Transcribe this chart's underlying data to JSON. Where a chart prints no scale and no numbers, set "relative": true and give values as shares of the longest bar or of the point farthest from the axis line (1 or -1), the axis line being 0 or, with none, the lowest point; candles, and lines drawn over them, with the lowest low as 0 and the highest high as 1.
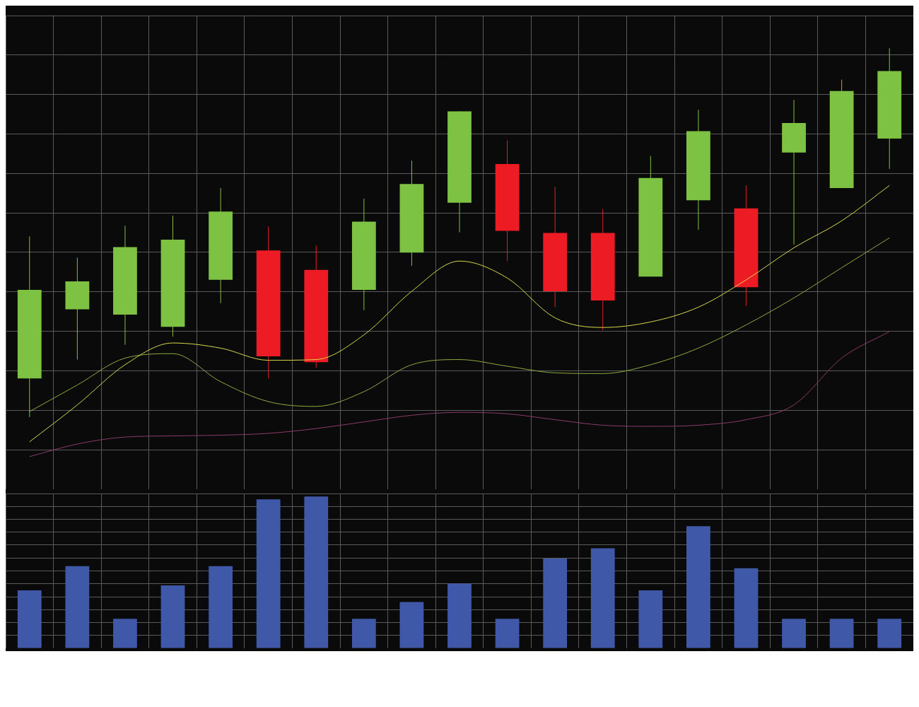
{
  "chart_data": [
    {
      "type": "candlestick",
      "relative": true,
      "grid": true,
      "tick_labels": false,
      "legend": false,
      "categories": [
        null,
        null,
        null,
        null,
        null,
        null,
        null,
        null,
        null,
        null,
        null,
        null,
        null,
        null,
        null,
        null,
        null,
        null,
        null
      ],
      "ohlc": [
        [
          0.105,
          0.49,
          0,
          0.345
        ],
        [
          0.292,
          0.432,
          0.156,
          0.368
        ],
        [
          0.278,
          0.519,
          0.196,
          0.461
        ],
        [
          0.245,
          0.546,
          0.218,
          0.481
        ],
        [
          0.372,
          0.621,
          0.309,
          0.557
        ],
        [
          0.452,
          0.517,
          0.105,
          0.165
        ],
        [
          0.399,
          0.465,
          0.134,
          0.149
        ],
        [
          0.345,
          0.592,
          0.29,
          0.53
        ],
        [
          0.446,
          0.695,
          0.41,
          0.632
        ],
        [
          0.581,
          0.829,
          0.501,
          0.829
        ],
        [
          0.686,
          0.75,
          0.423,
          0.505
        ],
        [
          0.499,
          0.624,
          0.298,
          0.341
        ],
        [
          0.499,
          0.564,
          0.236,
          0.316
        ],
        [
          0.381,
          0.708,
          0.381,
          0.648
        ],
        [
          0.588,
          0.833,
          0.508,
          0.775
        ],
        [
          0.566,
          0.628,
          0.301,
          0.352
        ],
        [
          0.717,
          0.86,
          0.468,
          0.797
        ],
        [
          0.621,
          0.915,
          0.621,
          0.884
        ],
        [
          0.755,
          1,
          0.673,
          0.938
        ]
      ],
      "colors": [
        "#7dc242",
        "#7dc242",
        "#7dc242",
        "#7dc242",
        "#7dc242",
        "#ed1c24",
        "#ed1c24",
        "#7dc242",
        "#7dc242",
        "#7dc242",
        "#ed1c24",
        "#ed1c24",
        "#ed1c24",
        "#7dc242",
        "#7dc242",
        "#ed1c24",
        "#7dc242",
        "#7dc242",
        "#7dc242"
      ],
      "series": [
        {
          "type": "line",
          "color": "#d7d94a",
          "values": [
            -0.067,
            0.033,
            0.142,
            0.201,
            0.187,
            0.154,
            0.156,
            0.223,
            0.341,
            0.423,
            0.377,
            0.269,
            0.243,
            0.258,
            0.298,
            0.372,
            0.459,
            0.532,
            0.628
          ]
        },
        {
          "type": "line",
          "color": "#8faa3c",
          "values": [
            0.015,
            0.087,
            0.16,
            0.172,
            0.096,
            0.042,
            0.029,
            0.069,
            0.142,
            0.156,
            0.138,
            0.12,
            0.118,
            0.142,
            0.187,
            0.25,
            0.323,
            0.405,
            0.486
          ]
        },
        {
          "type": "line",
          "color": "#8b3a6a",
          "values": [
            -0.107,
            -0.073,
            -0.054,
            -0.051,
            -0.049,
            -0.044,
            -0.031,
            -0.013,
            0.005,
            0.013,
            0.009,
            -0.007,
            -0.022,
            -0.025,
            -0.022,
            -0.007,
            0.033,
            0.16,
            0.232
          ]
        }
      ]
    },
    {
      "type": "bar",
      "relative": true,
      "grid": true,
      "tick_labels": false,
      "legend": false,
      "color": "#3f58a8",
      "categories": [
        null,
        null,
        null,
        null,
        null,
        null,
        null,
        null,
        null,
        null,
        null,
        null,
        null,
        null,
        null,
        null,
        null,
        null,
        null
      ],
      "values": [
        0.382,
        0.541,
        0.195,
        0.414,
        0.541,
        0.982,
        1,
        0.195,
        0.305,
        0.427,
        0.195,
        0.591,
        0.659,
        0.382,
        0.805,
        0.527,
        0.195,
        0.195,
        0.195
      ]
    }
  ]
}
